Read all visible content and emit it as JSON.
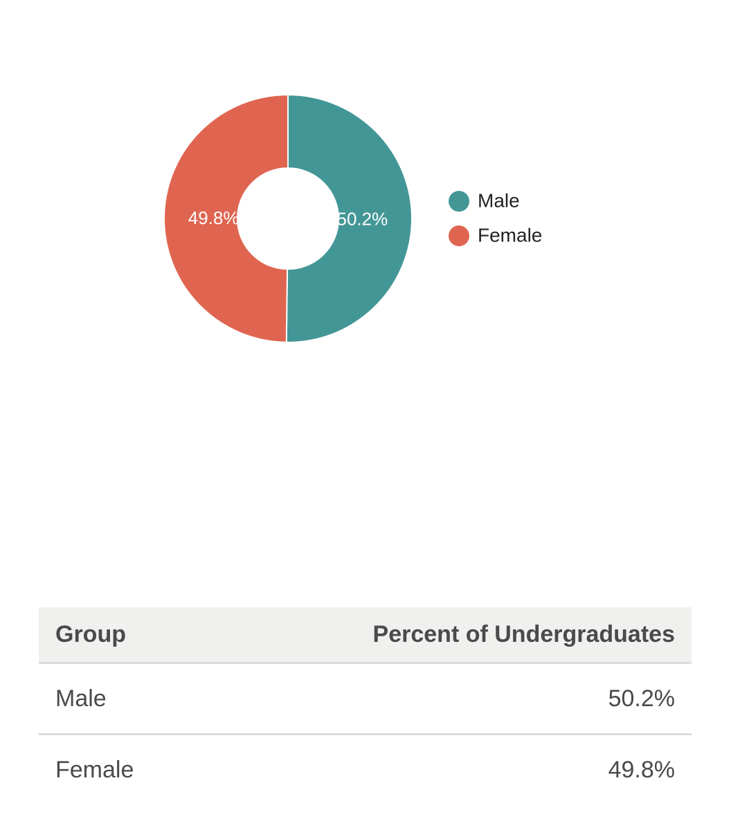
{
  "chart_data": {
    "type": "donut",
    "categories": [
      "Male",
      "Female"
    ],
    "values": [
      50.2,
      49.8
    ],
    "value_labels": [
      "50.2%",
      "49.8%"
    ],
    "colors": [
      "#439696",
      "#e06550"
    ],
    "legend": "right"
  },
  "table": {
    "header": [
      "Group",
      "Percent of Undergraduates"
    ],
    "rows": [
      [
        "Male",
        "50.2%"
      ],
      [
        "Female",
        "49.8%"
      ]
    ]
  }
}
